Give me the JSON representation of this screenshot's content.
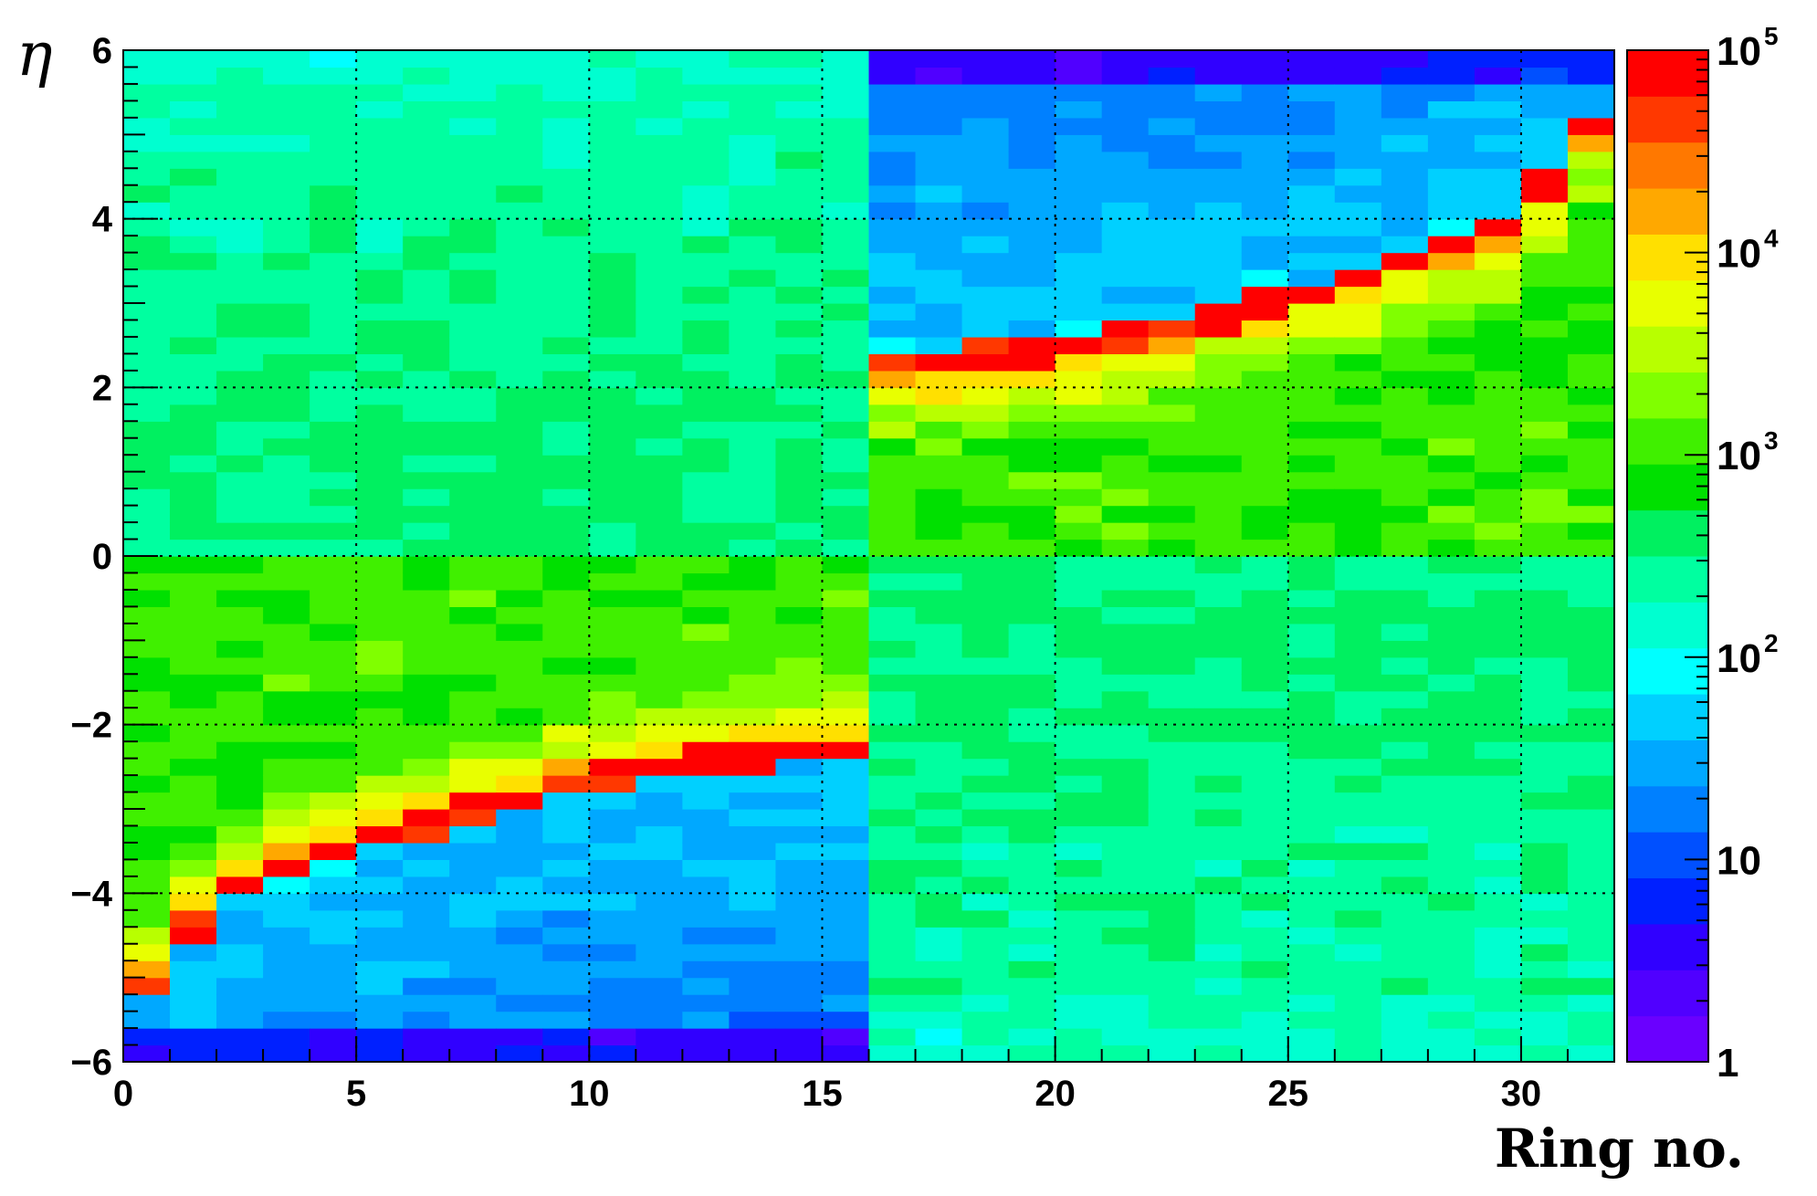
{
  "chart_data": {
    "type": "heatmap",
    "xlabel": "Ring no.",
    "ylabel": "η",
    "xlim": [
      0,
      32
    ],
    "ylim": [
      -6,
      6
    ],
    "x_bin_width": 1,
    "y_bin_width": 0.2,
    "x_tick_labels": [
      "0",
      "5",
      "10",
      "15",
      "20",
      "25",
      "30"
    ],
    "x_tick_values": [
      0,
      5,
      10,
      15,
      20,
      25,
      30
    ],
    "y_tick_labels": [
      "−6",
      "−4",
      "−2",
      "0",
      "2",
      "4",
      "6"
    ],
    "y_tick_values": [
      -6,
      -4,
      -2,
      0,
      2,
      4,
      6
    ],
    "grid": true,
    "z_scale": "log",
    "z_range": [
      1,
      100000
    ],
    "colorbar": {
      "tick_labels": [
        {
          "value": 1,
          "base": "1",
          "exp": ""
        },
        {
          "value": 10,
          "base": "10",
          "exp": ""
        },
        {
          "value": 100,
          "base": "10",
          "exp": "2"
        },
        {
          "value": 1000,
          "base": "10",
          "exp": "3"
        },
        {
          "value": 10000,
          "base": "10",
          "exp": "4"
        },
        {
          "value": 100000,
          "base": "10",
          "exp": "5"
        }
      ],
      "palette": [
        "#6a00ff",
        "#5000ff",
        "#3000ff",
        "#0020ff",
        "#0050ff",
        "#0080ff",
        "#00a8ff",
        "#00d0ff",
        "#00ffff",
        "#00ffd0",
        "#00ffa0",
        "#00f060",
        "#00e000",
        "#40f000",
        "#80ff00",
        "#b8ff00",
        "#e8ff00",
        "#ffe000",
        "#ffa800",
        "#ff7800",
        "#ff3800",
        "#ff0000"
      ]
    },
    "description_of_values": "Counts (log10) per (ring, eta) bin: ridge along ring-dependent eta, forward half for rings 16-31, backward half for rings 0-15.",
    "ridge_eta_backward": [
      -5.0,
      -4.3,
      -3.8,
      -3.6,
      -3.4,
      -3.2,
      -3.05,
      -2.9,
      -2.75,
      -2.6,
      -2.5,
      -2.4,
      -2.3,
      -2.25,
      -2.2,
      -2.15
    ],
    "ridge_eta_forward": [
      2.15,
      2.2,
      2.25,
      2.3,
      2.4,
      2.5,
      2.6,
      2.75,
      2.9,
      3.05,
      3.2,
      3.4,
      3.6,
      3.8,
      4.3,
      5.0
    ]
  }
}
